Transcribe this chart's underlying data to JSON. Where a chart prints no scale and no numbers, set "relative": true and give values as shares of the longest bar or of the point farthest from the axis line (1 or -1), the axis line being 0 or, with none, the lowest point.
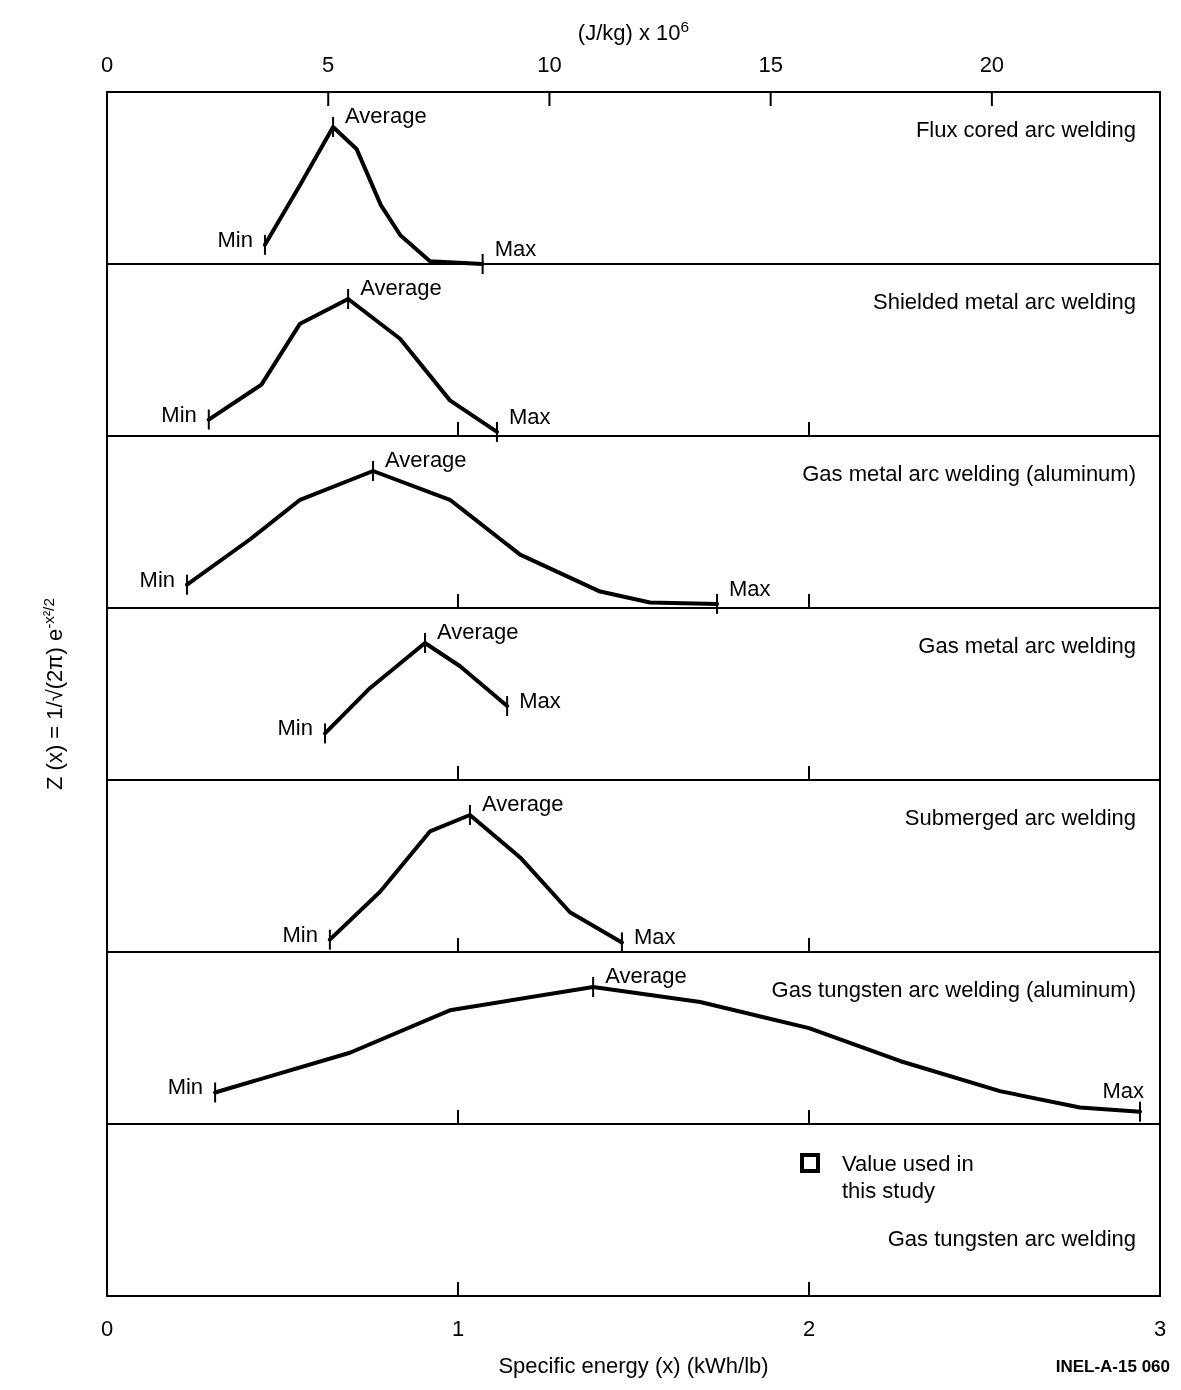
{
  "chart_data": [
    {
      "type": "line",
      "title": "Flux cored arc welding",
      "relative": true,
      "color": "#000000",
      "xlabel": "(J/kg) x 10$^{6}$",
      "xlim": [
        0,
        23.8
      ],
      "xticks": [
        0,
        5,
        10,
        15,
        20
      ],
      "x": [
        3.57,
        4.37,
        5.11,
        5.64,
        6.19,
        6.63,
        7.3,
        8.49
      ],
      "values": [
        0.14,
        0.58,
        1,
        0.84,
        0.43,
        0.21,
        0.02,
        0
      ],
      "annotations": [
        {
          "text": "Min",
          "x": 3.57,
          "y": 0.14
        },
        {
          "text": "Average",
          "x": 5.11,
          "y": 1
        },
        {
          "text": "Max",
          "x": 8.49,
          "y": 0
        }
      ]
    },
    {
      "type": "line",
      "title": "Shielded metal  arc welding",
      "relative": true,
      "color": "#000000",
      "xlim": [
        0,
        3
      ],
      "xticks": [
        0,
        1,
        2,
        3
      ],
      "tick_labels": false,
      "x": [
        0.29,
        0.44,
        0.55,
        0.687,
        0.835,
        0.977,
        1.111
      ],
      "values": [
        0.12,
        0.375,
        0.82,
        1,
        0.71,
        0.26,
        0.03
      ],
      "annotations": [
        {
          "text": "Min",
          "x": 0.29,
          "y": 0.12
        },
        {
          "text": "Average",
          "x": 0.687,
          "y": 1
        },
        {
          "text": "Max",
          "x": 1.111,
          "y": 0.03
        }
      ]
    },
    {
      "type": "line",
      "title": "Gas metal arc welding (aluminum)",
      "relative": true,
      "color": "#000000",
      "xlim": [
        0,
        3
      ],
      "xticks": [
        0,
        1,
        2,
        3
      ],
      "tick_labels": false,
      "x": [
        0.228,
        0.407,
        0.55,
        0.758,
        0.977,
        1.177,
        1.405,
        1.547,
        1.738
      ],
      "values": [
        0.17,
        0.5,
        0.79,
        1,
        0.79,
        0.39,
        0.12,
        0.04,
        0.03
      ],
      "annotations": [
        {
          "text": "Min",
          "x": 0.228,
          "y": 0.17
        },
        {
          "text": "Average",
          "x": 0.758,
          "y": 1
        },
        {
          "text": "Max",
          "x": 1.738,
          "y": 0.03
        }
      ]
    },
    {
      "type": "line",
      "title": "Gas metal arc welding",
      "ylabel": "Z (x) = 1/√(2π) e$^{-x²/2}$",
      "relative": true,
      "color": "#000000",
      "xlim": [
        0,
        3
      ],
      "xticks": [
        0,
        1,
        2,
        3
      ],
      "tick_labels": false,
      "x": [
        0.621,
        0.749,
        0.906,
        1.006,
        1.14
      ],
      "values": [
        0.34,
        0.67,
        1,
        0.83,
        0.54
      ],
      "annotations": [
        {
          "text": "Min",
          "x": 0.621,
          "y": 0.34
        },
        {
          "text": "Average",
          "x": 0.906,
          "y": 1
        },
        {
          "text": "Max",
          "x": 1.14,
          "y": 0.54
        }
      ]
    },
    {
      "type": "line",
      "title": "Submerged arc welding",
      "relative": true,
      "color": "#000000",
      "xlim": [
        0,
        3
      ],
      "xticks": [
        0,
        1,
        2,
        3
      ],
      "tick_labels": false,
      "x": [
        0.635,
        0.778,
        0.92,
        1.034,
        1.177,
        1.319,
        1.467
      ],
      "values": [
        0.09,
        0.44,
        0.88,
        1,
        0.69,
        0.29,
        0.07
      ],
      "annotations": [
        {
          "text": "Min",
          "x": 0.635,
          "y": 0.09
        },
        {
          "text": "Average",
          "x": 1.034,
          "y": 1
        },
        {
          "text": "Max",
          "x": 1.467,
          "y": 0.07
        }
      ]
    },
    {
      "type": "line",
      "title": "Gas tungsten arc welding (aluminum)",
      "relative": true,
      "color": "#000000",
      "xlabel": "Specific energy (x) (kWh/lb)",
      "xlim": [
        0,
        3
      ],
      "xticks": [
        0,
        1,
        2,
        3
      ],
      "x": [
        0.308,
        0.692,
        0.977,
        1.385,
        1.69,
        2.0,
        2.259,
        2.544,
        2.772,
        2.943
      ],
      "values": [
        0.23,
        0.52,
        0.83,
        1,
        0.89,
        0.7,
        0.46,
        0.24,
        0.12,
        0.09
      ],
      "annotations": [
        {
          "text": "Min",
          "x": 0.308,
          "y": 0.23
        },
        {
          "text": "Average",
          "x": 1.385,
          "y": 1
        },
        {
          "text": "Max",
          "x": 2.943,
          "y": 0.09
        }
      ]
    },
    {
      "type": "other",
      "title": "Gas tungsten arc welding",
      "annotations": [
        "Value used in this study",
        "INEL-A-15 060"
      ]
    }
  ]
}
